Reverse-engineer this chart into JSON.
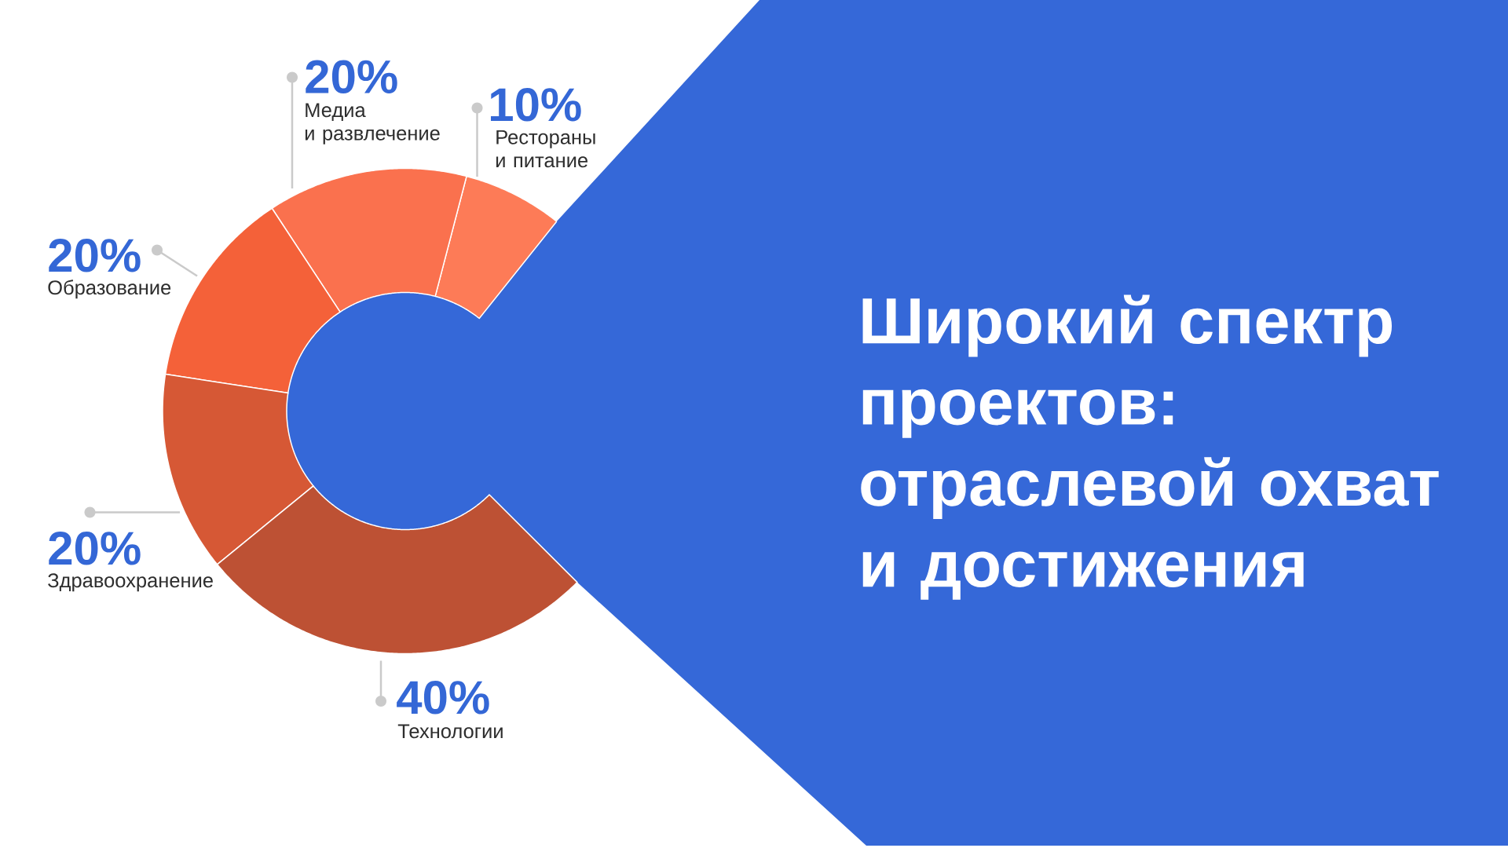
{
  "chart_data": {
    "type": "donut",
    "title": "Широкий спектр проектов: отраслевой охват и достижения",
    "categories": [
      "Рестораны и питание",
      "Медиа и развлечение",
      "Образование",
      "Здравоохранение",
      "Технологии"
    ],
    "values": [
      10,
      20,
      20,
      20,
      40
    ],
    "value_labels": [
      "10%",
      "20%",
      "20%",
      "20%",
      "40%"
    ],
    "colors": [
      "#fd7b57",
      "#fa714e",
      "#f46139",
      "#d65835",
      "#bd5134"
    ]
  }
}
